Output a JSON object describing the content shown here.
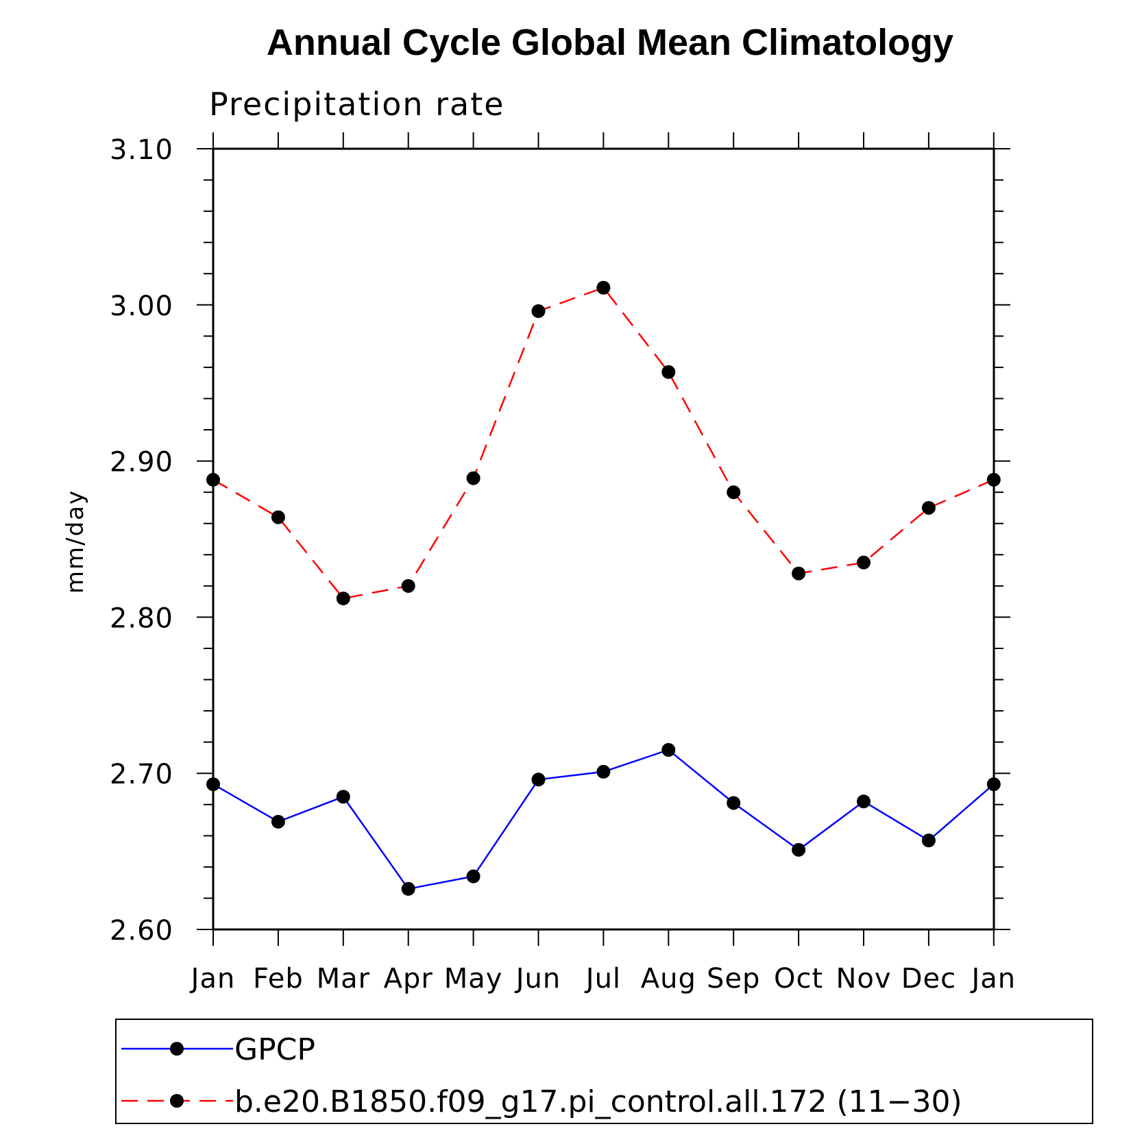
{
  "chart_data": {
    "type": "line",
    "title": "Annual Cycle Global Mean Climatology",
    "subtitle": "Precipitation rate",
    "xlabel": "",
    "ylabel": "mm/day",
    "categories": [
      "Jan",
      "Feb",
      "Mar",
      "Apr",
      "May",
      "Jun",
      "Jul",
      "Aug",
      "Sep",
      "Oct",
      "Nov",
      "Dec",
      "Jan"
    ],
    "ylim": [
      2.6,
      3.1
    ],
    "yticks": [
      "2.60",
      "2.70",
      "2.80",
      "2.90",
      "3.00",
      "3.10"
    ],
    "grid": false,
    "legend_position": "bottom",
    "series": [
      {
        "name": "GPCP",
        "color": "#0000ff",
        "line_style": "solid",
        "marker": "filled-circle",
        "values": [
          2.693,
          2.669,
          2.685,
          2.626,
          2.634,
          2.696,
          2.701,
          2.715,
          2.681,
          2.651,
          2.682,
          2.657,
          2.693
        ]
      },
      {
        "name": "b.e20.B1850.f09_g17.pi_control.all.172 (11−30)",
        "color": "#ff0000",
        "line_style": "dashed",
        "marker": "filled-circle",
        "values": [
          2.888,
          2.864,
          2.812,
          2.82,
          2.889,
          2.996,
          3.011,
          2.957,
          2.88,
          2.828,
          2.835,
          2.87,
          2.888
        ]
      }
    ]
  }
}
